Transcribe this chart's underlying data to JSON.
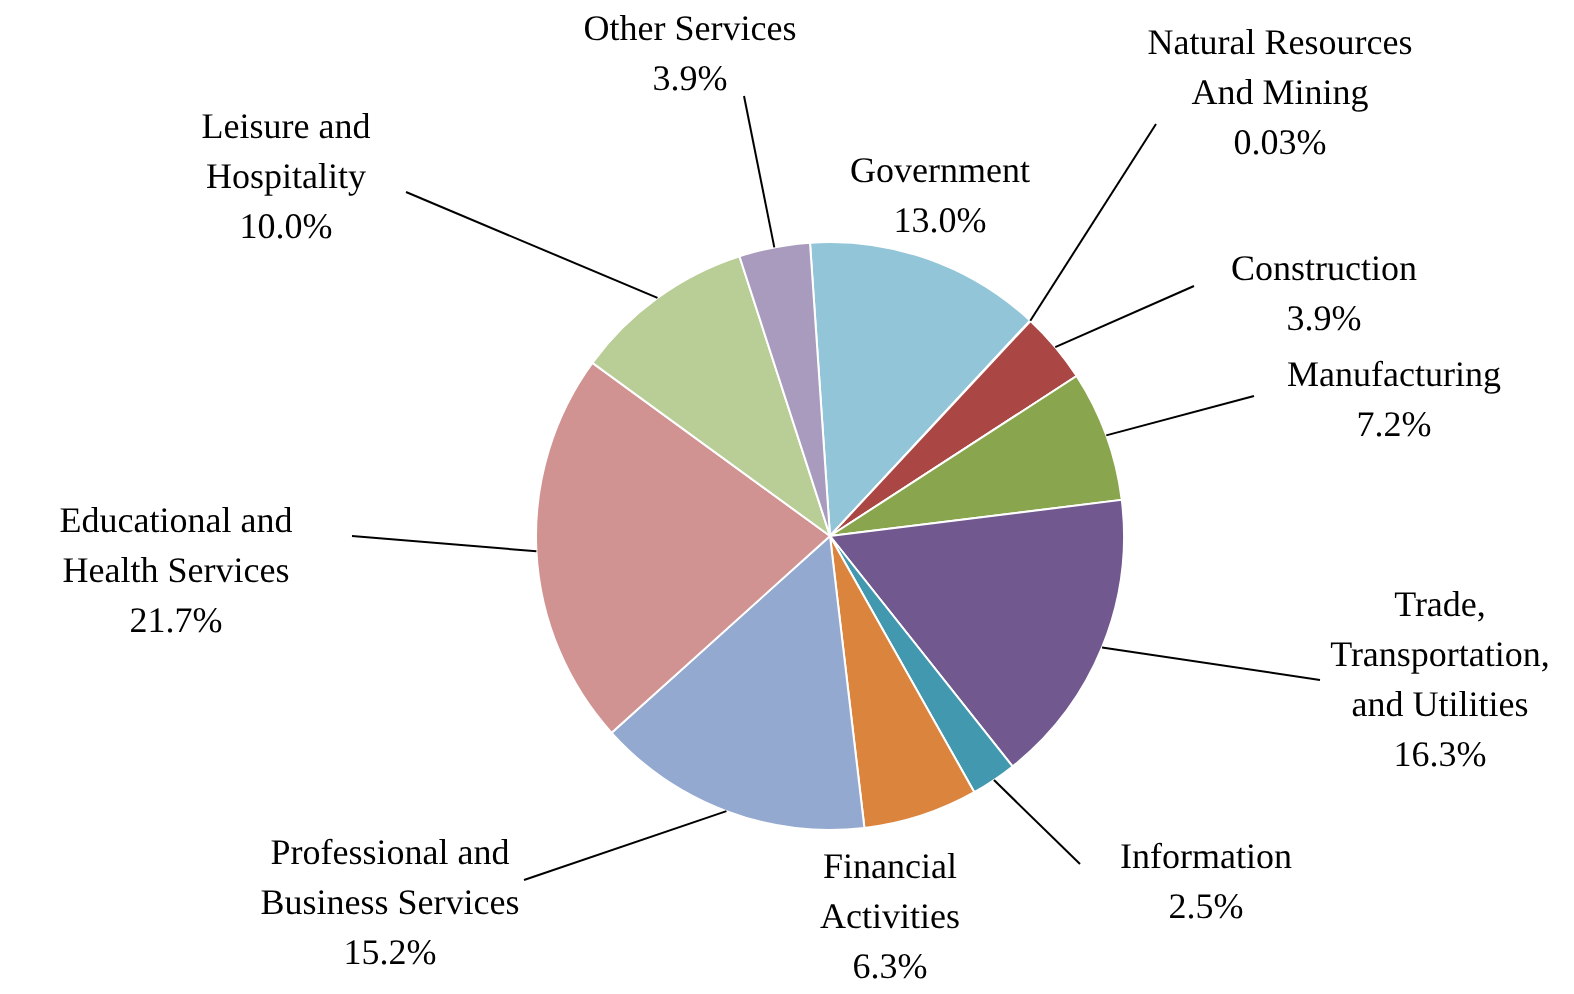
{
  "chart_data": {
    "type": "pie",
    "categories": [
      "Government",
      "Natural Resources And Mining",
      "Construction",
      "Manufacturing",
      "Trade, Transportation, and Utilities",
      "Information",
      "Financial Activities",
      "Professional and Business Services",
      "Educational and Health Services",
      "Leisure and Hospitality",
      "Other Services"
    ],
    "values": [
      13.0,
      0.03,
      3.9,
      7.2,
      16.3,
      2.5,
      6.3,
      15.2,
      21.7,
      10.0,
      3.9
    ],
    "value_labels": [
      "13.0%",
      "0.03%",
      "3.9%",
      "7.2%",
      "16.3%",
      "2.5%",
      "6.3%",
      "15.2%",
      "21.7%",
      "10.0%",
      "3.9%"
    ],
    "colors": [
      "#92c5d8",
      "#4572a7",
      "#aa4643",
      "#89a54e",
      "#71588f",
      "#4198af",
      "#db843d",
      "#93a9cf",
      "#d19392",
      "#b9cd96",
      "#a99bbd"
    ]
  }
}
